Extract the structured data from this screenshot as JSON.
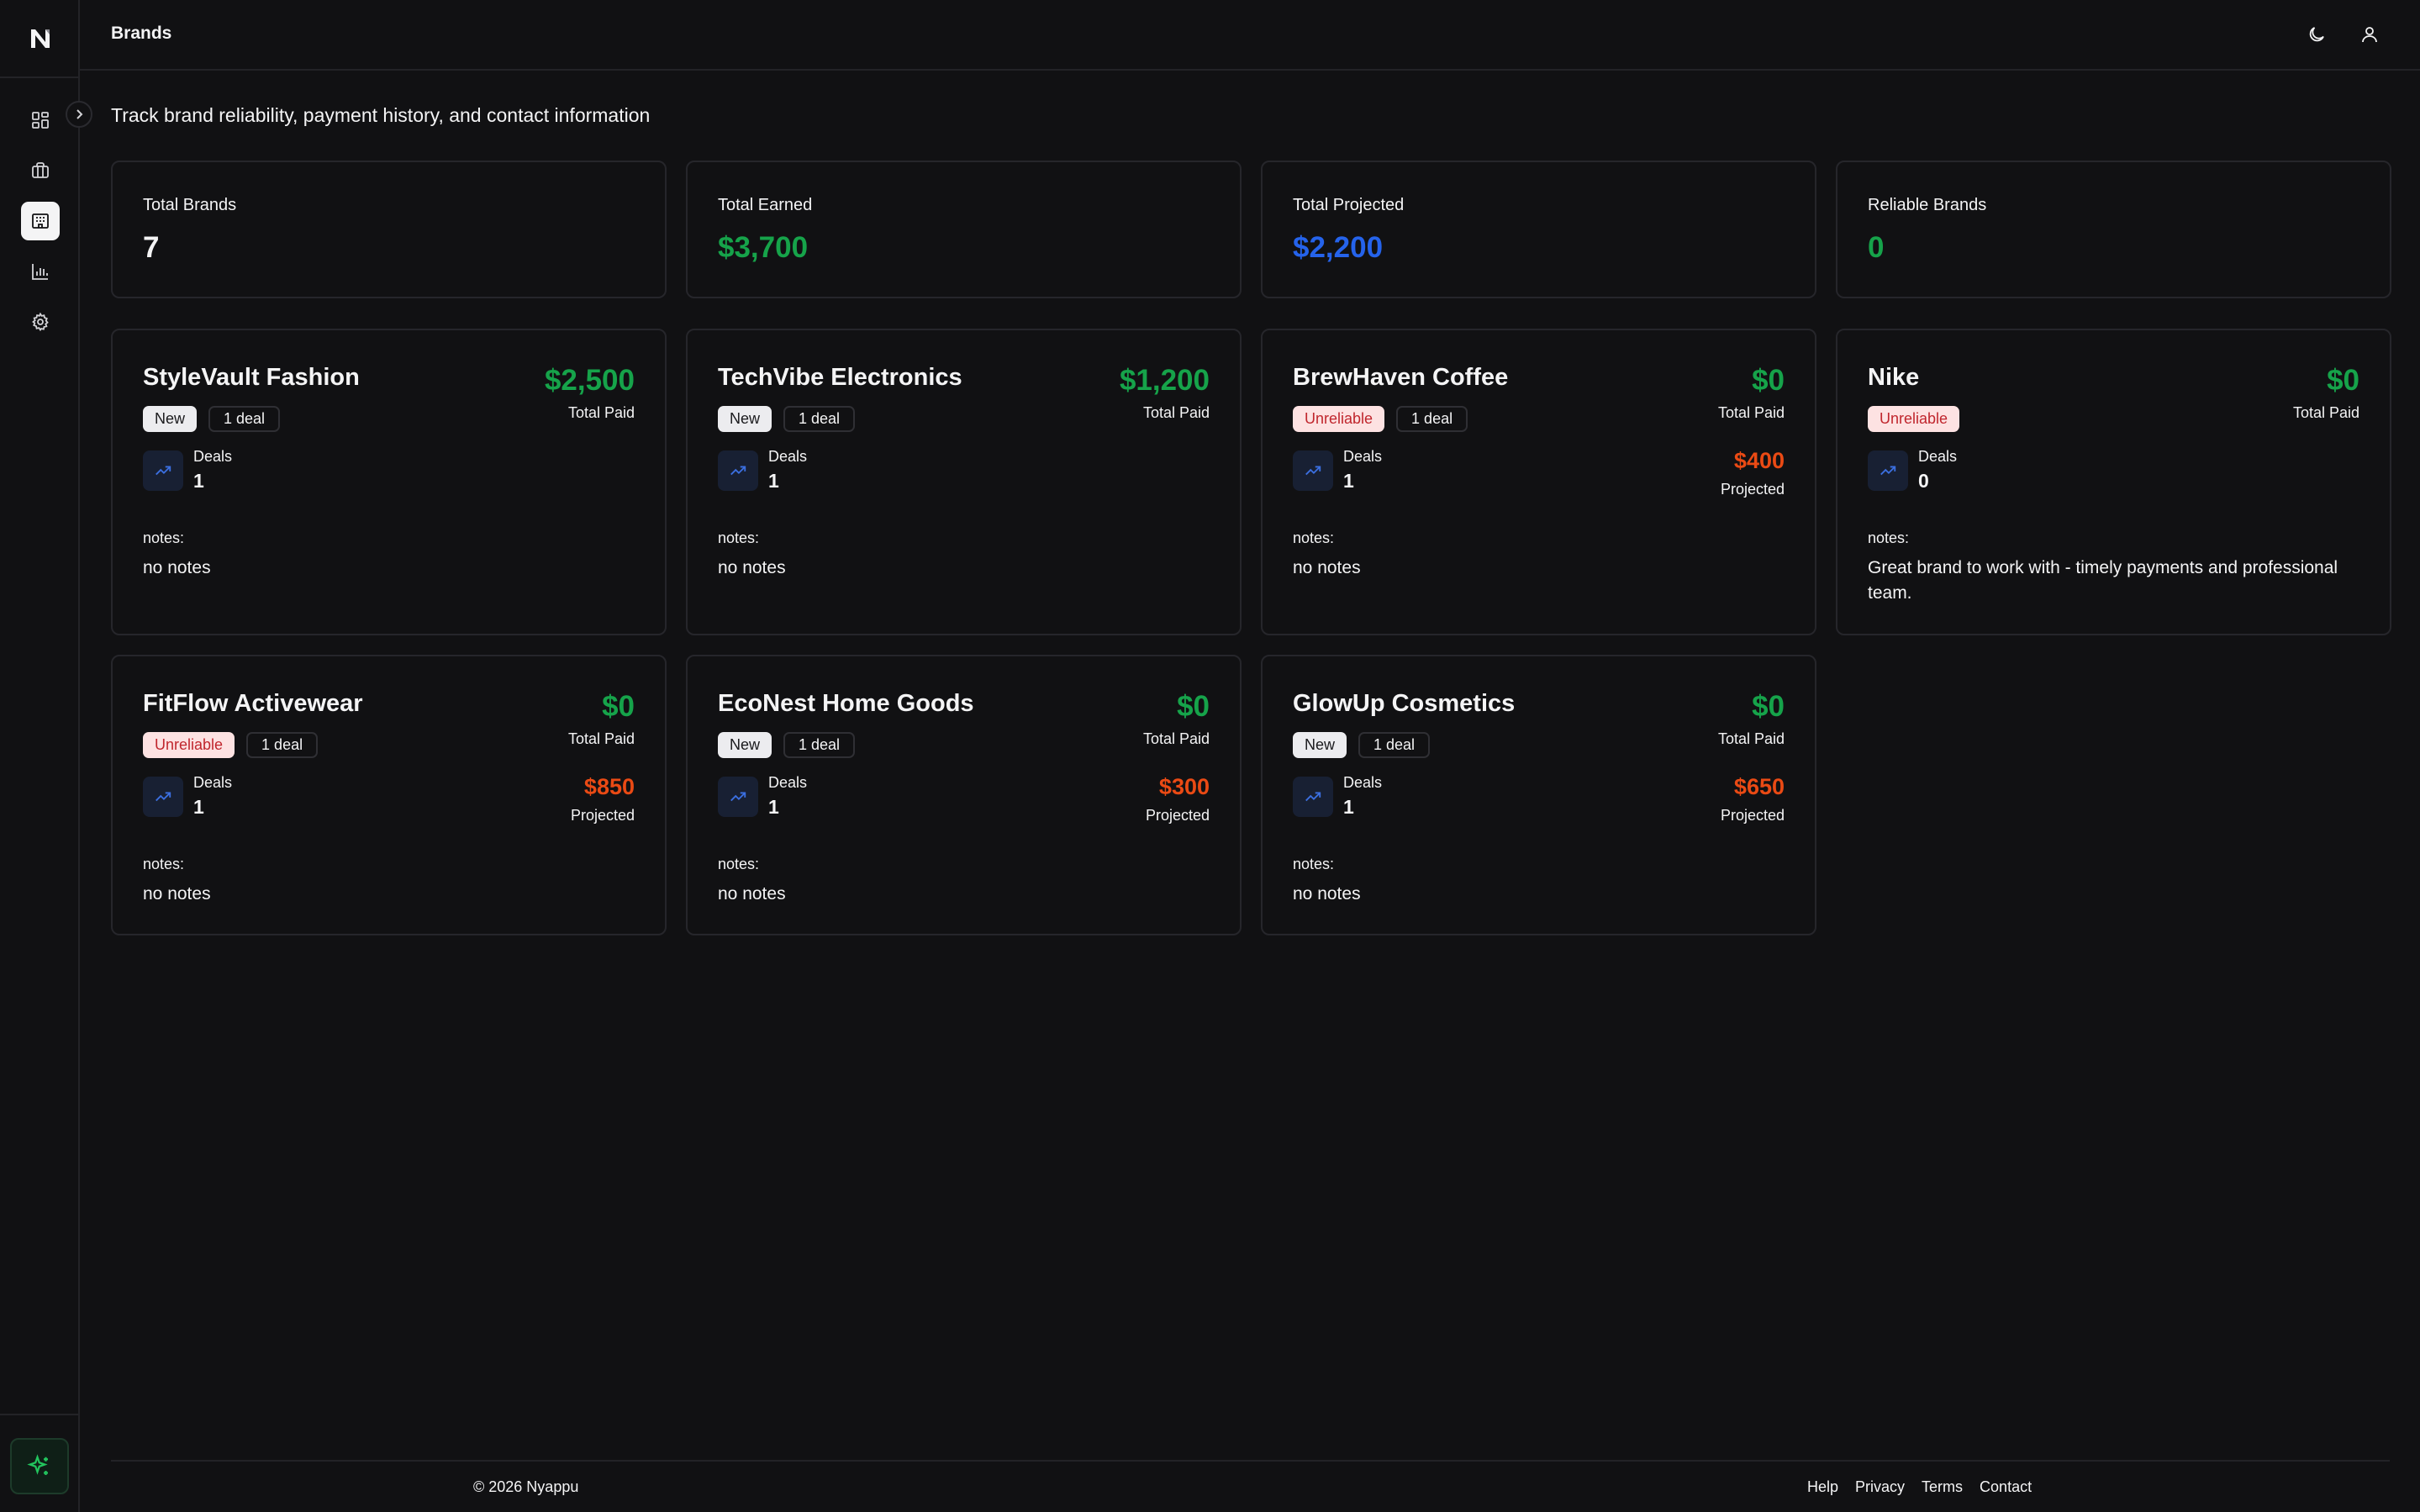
{
  "sidebar": {
    "logo": "N",
    "items": [
      {
        "icon": "dashboard-icon"
      },
      {
        "icon": "briefcase-icon"
      },
      {
        "icon": "building-icon",
        "active": true
      },
      {
        "icon": "bar-chart-icon"
      },
      {
        "icon": "gear-icon"
      }
    ],
    "ai_button_icon": "sparkles-icon"
  },
  "header": {
    "title": "Brands",
    "theme_icon": "moon-icon",
    "user_icon": "user-icon"
  },
  "subtitle": "Track brand reliability, payment history, and contact information",
  "stats": [
    {
      "label": "Total Brands",
      "value": "7",
      "color": "#f4f4f5"
    },
    {
      "label": "Total Earned",
      "value": "$3,700",
      "color": "#16a34a"
    },
    {
      "label": "Total Projected",
      "value": "$2,200",
      "color": "#2563eb"
    },
    {
      "label": "Reliable Brands",
      "value": "0",
      "color": "#16a34a"
    }
  ],
  "brands": [
    {
      "name": "StyleVault Fashion",
      "status": "New",
      "deal_count": "1 deal",
      "paid": "$2,500",
      "paid_label": "Total Paid",
      "projected": "",
      "projected_label": "",
      "deals_label": "Deals",
      "deals": "1",
      "notes_label": "notes:",
      "notes": "no notes"
    },
    {
      "name": "TechVibe Electronics",
      "status": "New",
      "deal_count": "1 deal",
      "paid": "$1,200",
      "paid_label": "Total Paid",
      "projected": "",
      "projected_label": "",
      "deals_label": "Deals",
      "deals": "1",
      "notes_label": "notes:",
      "notes": "no notes"
    },
    {
      "name": "BrewHaven Coffee",
      "status": "Unreliable",
      "deal_count": "1 deal",
      "paid": "$0",
      "paid_label": "Total Paid",
      "projected": "$400",
      "projected_label": "Projected",
      "deals_label": "Deals",
      "deals": "1",
      "notes_label": "notes:",
      "notes": "no notes"
    },
    {
      "name": "Nike",
      "status": "Unreliable",
      "deal_count": "",
      "paid": "$0",
      "paid_label": "Total Paid",
      "projected": "",
      "projected_label": "",
      "deals_label": "Deals",
      "deals": "0",
      "notes_label": "notes:",
      "notes": "Great brand to work with - timely payments and professional team."
    },
    {
      "name": "FitFlow Activewear",
      "status": "Unreliable",
      "deal_count": "1 deal",
      "paid": "$0",
      "paid_label": "Total Paid",
      "projected": "$850",
      "projected_label": "Projected",
      "deals_label": "Deals",
      "deals": "1",
      "notes_label": "notes:",
      "notes": "no notes"
    },
    {
      "name": "EcoNest Home Goods",
      "status": "New",
      "deal_count": "1 deal",
      "paid": "$0",
      "paid_label": "Total Paid",
      "projected": "$300",
      "projected_label": "Projected",
      "deals_label": "Deals",
      "deals": "1",
      "notes_label": "notes:",
      "notes": "no notes"
    },
    {
      "name": "GlowUp Cosmetics",
      "status": "New",
      "deal_count": "1 deal",
      "paid": "$0",
      "paid_label": "Total Paid",
      "projected": "$650",
      "projected_label": "Projected",
      "deals_label": "Deals",
      "deals": "1",
      "notes_label": "notes:",
      "notes": "no notes"
    }
  ],
  "footer": {
    "copyright": "© 2026 Nyappu",
    "links": [
      "Help",
      "Privacy",
      "Terms",
      "Contact"
    ]
  },
  "colors": {
    "accent_green": "#16a34a",
    "accent_blue": "#2563eb",
    "accent_orange": "#ea4a14",
    "background": "#111113"
  }
}
